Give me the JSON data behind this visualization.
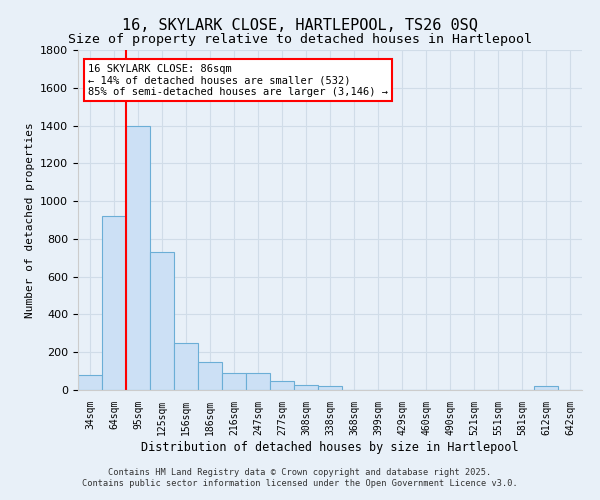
{
  "title": "16, SKYLARK CLOSE, HARTLEPOOL, TS26 0SQ",
  "subtitle": "Size of property relative to detached houses in Hartlepool",
  "xlabel": "Distribution of detached houses by size in Hartlepool",
  "ylabel": "Number of detached properties",
  "bins": [
    "34sqm",
    "64sqm",
    "95sqm",
    "125sqm",
    "156sqm",
    "186sqm",
    "216sqm",
    "247sqm",
    "277sqm",
    "308sqm",
    "338sqm",
    "368sqm",
    "399sqm",
    "429sqm",
    "460sqm",
    "490sqm",
    "521sqm",
    "551sqm",
    "581sqm",
    "612sqm",
    "642sqm"
  ],
  "values": [
    80,
    920,
    1400,
    730,
    250,
    150,
    90,
    90,
    50,
    25,
    20,
    0,
    0,
    0,
    0,
    0,
    0,
    0,
    0,
    20,
    0
  ],
  "bar_color": "#cce0f5",
  "bar_edge_color": "#6baed6",
  "vline_x_idx": 1.5,
  "vline_color": "red",
  "annotation_text": "16 SKYLARK CLOSE: 86sqm\n← 14% of detached houses are smaller (532)\n85% of semi-detached houses are larger (3,146) →",
  "annotation_box_color": "white",
  "annotation_box_edge": "red",
  "ylim": [
    0,
    1800
  ],
  "yticks": [
    0,
    200,
    400,
    600,
    800,
    1000,
    1200,
    1400,
    1600,
    1800
  ],
  "bg_color": "#e8f0f8",
  "grid_color": "#d0dce8",
  "footer1": "Contains HM Land Registry data © Crown copyright and database right 2025.",
  "footer2": "Contains public sector information licensed under the Open Government Licence v3.0.",
  "title_fontsize": 11,
  "subtitle_fontsize": 9.5
}
